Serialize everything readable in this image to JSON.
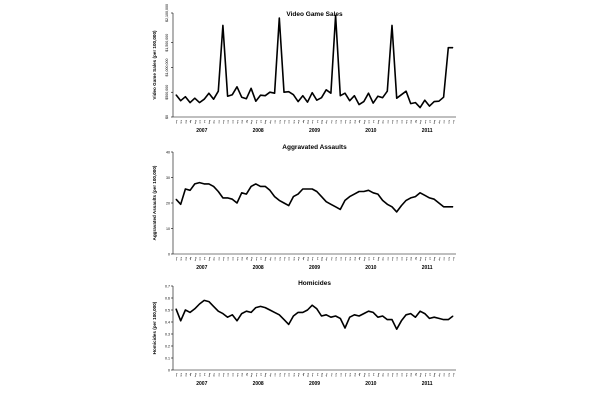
{
  "chart_data": [
    {
      "type": "line",
      "title": "Video Game Sales",
      "ylabel": "Video Game Sales (per 100,000)",
      "ylim": [
        0,
        2100000
      ],
      "yticks": [
        0,
        500000,
        1000000,
        1500000,
        2100000
      ],
      "ytick_labels": [
        "$0",
        "$500,000",
        "$1,000,000",
        "$1,500,000",
        "$2,100,000"
      ],
      "year_labels": [
        "2007",
        "2008",
        "2009",
        "2010",
        "2011"
      ],
      "month_labels": [
        "Jan",
        "Feb",
        "Mar",
        "Apr",
        "May",
        "Jun",
        "Jul",
        "Aug",
        "Sep",
        "Oct",
        "Nov",
        "Dec",
        "Jan",
        "Feb",
        "Mar",
        "Apr",
        "May",
        "Jun",
        "Jul",
        "Aug",
        "Sep",
        "Oct",
        "Nov",
        "Dec",
        "Jan",
        "Feb",
        "Mar",
        "Apr",
        "May",
        "Jun",
        "Jul",
        "Aug",
        "Sep",
        "Oct",
        "Nov",
        "Dec",
        "Jan",
        "Feb",
        "Mar",
        "Apr",
        "May",
        "Jun",
        "Jul",
        "Aug",
        "Sep",
        "Oct",
        "Nov",
        "Dec",
        "Jan",
        "Feb",
        "Mar",
        "Apr",
        "May",
        "Jun",
        "Jul",
        "Aug",
        "Sep",
        "Oct",
        "Nov",
        "Dec"
      ],
      "values": [
        450000,
        330000,
        410000,
        290000,
        380000,
        290000,
        360000,
        480000,
        360000,
        520000,
        1850000,
        420000,
        450000,
        610000,
        400000,
        370000,
        580000,
        320000,
        440000,
        430000,
        500000,
        480000,
        2000000,
        500000,
        510000,
        450000,
        310000,
        430000,
        300000,
        490000,
        340000,
        390000,
        550000,
        480000,
        2050000,
        430000,
        480000,
        330000,
        430000,
        250000,
        310000,
        480000,
        280000,
        420000,
        390000,
        520000,
        1850000,
        380000,
        450000,
        520000,
        270000,
        290000,
        190000,
        340000,
        220000,
        310000,
        320000,
        400000,
        1400000,
        1400000
      ]
    },
    {
      "type": "line",
      "title": "Aggravated Assaults",
      "ylabel": "Aggravated Assaults (per 100,000)",
      "ylim": [
        0,
        40
      ],
      "yticks": [
        0,
        10,
        20,
        30,
        40
      ],
      "ytick_labels": [
        "0",
        "10",
        "20",
        "30",
        "40"
      ],
      "year_labels": [
        "2007",
        "2008",
        "2009",
        "2010",
        "2011"
      ],
      "month_labels": [
        "Jan",
        "Feb",
        "Mar",
        "Apr",
        "May",
        "Jun",
        "Jul",
        "Aug",
        "Sep",
        "Oct",
        "Nov",
        "Dec",
        "Jan",
        "Feb",
        "Mar",
        "Apr",
        "May",
        "Jun",
        "Jul",
        "Aug",
        "Sep",
        "Oct",
        "Nov",
        "Dec",
        "Jan",
        "Feb",
        "Mar",
        "Apr",
        "May",
        "Jun",
        "Jul",
        "Aug",
        "Sep",
        "Oct",
        "Nov",
        "Dec",
        "Jan",
        "Feb",
        "Mar",
        "Apr",
        "May",
        "Jun",
        "Jul",
        "Aug",
        "Sep",
        "Oct",
        "Nov",
        "Dec",
        "Jan",
        "Feb",
        "Mar",
        "Apr",
        "May",
        "Jun",
        "Jul",
        "Aug",
        "Sep",
        "Oct",
        "Nov",
        "Dec"
      ],
      "values": [
        21.5,
        19.5,
        25.5,
        25,
        27.5,
        28,
        27.5,
        27.5,
        26.5,
        24.5,
        22,
        22,
        21.5,
        20,
        24,
        23.5,
        26.5,
        27.5,
        26.5,
        26.5,
        25,
        22.5,
        21,
        20,
        19,
        22.5,
        23.5,
        25.5,
        25.5,
        25.5,
        24.5,
        22.5,
        20.5,
        19.5,
        18.5,
        17.5,
        21,
        22.5,
        23.5,
        24.5,
        24.5,
        25,
        24,
        23.5,
        21,
        19.5,
        18.5,
        16.5,
        19,
        21,
        22,
        22.5,
        24,
        23,
        22,
        21.5,
        20,
        18.5,
        18.5,
        18.5
      ]
    },
    {
      "type": "line",
      "title": "Homicides",
      "ylabel": "Homicides (per 100,000)",
      "ylim": [
        0,
        0.7
      ],
      "yticks": [
        0,
        0.1,
        0.2,
        0.3,
        0.4,
        0.5,
        0.6,
        0.7
      ],
      "ytick_labels": [
        "0",
        "0.1",
        "0.2",
        "0.3",
        "0.4",
        "0.5",
        "0.6",
        "0.7"
      ],
      "year_labels": [
        "2007",
        "2008",
        "2009",
        "2010",
        "2011"
      ],
      "month_labels": [
        "Jan",
        "Feb",
        "Mar",
        "Apr",
        "May",
        "Jun",
        "Jul",
        "Aug",
        "Sep",
        "Oct",
        "Nov",
        "Dec",
        "Jan",
        "Feb",
        "Mar",
        "Apr",
        "May",
        "Jun",
        "Jul",
        "Aug",
        "Sep",
        "Oct",
        "Nov",
        "Dec",
        "Jan",
        "Feb",
        "Mar",
        "Apr",
        "May",
        "Jun",
        "Jul",
        "Aug",
        "Sep",
        "Oct",
        "Nov",
        "Dec",
        "Jan",
        "Feb",
        "Mar",
        "Apr",
        "May",
        "Jun",
        "Jul",
        "Aug",
        "Sep",
        "Oct",
        "Nov",
        "Dec",
        "Jan",
        "Feb",
        "Mar",
        "Apr",
        "May",
        "Jun",
        "Jul",
        "Aug",
        "Sep",
        "Oct",
        "Nov",
        "Dec"
      ],
      "values": [
        0.51,
        0.41,
        0.5,
        0.48,
        0.51,
        0.55,
        0.58,
        0.57,
        0.53,
        0.49,
        0.47,
        0.44,
        0.46,
        0.41,
        0.47,
        0.49,
        0.48,
        0.52,
        0.53,
        0.52,
        0.5,
        0.48,
        0.46,
        0.42,
        0.38,
        0.45,
        0.48,
        0.48,
        0.5,
        0.54,
        0.51,
        0.45,
        0.46,
        0.44,
        0.45,
        0.43,
        0.35,
        0.44,
        0.46,
        0.45,
        0.47,
        0.49,
        0.48,
        0.44,
        0.45,
        0.42,
        0.42,
        0.34,
        0.41,
        0.46,
        0.47,
        0.44,
        0.49,
        0.47,
        0.43,
        0.44,
        0.43,
        0.42,
        0.42,
        0.45
      ]
    }
  ]
}
